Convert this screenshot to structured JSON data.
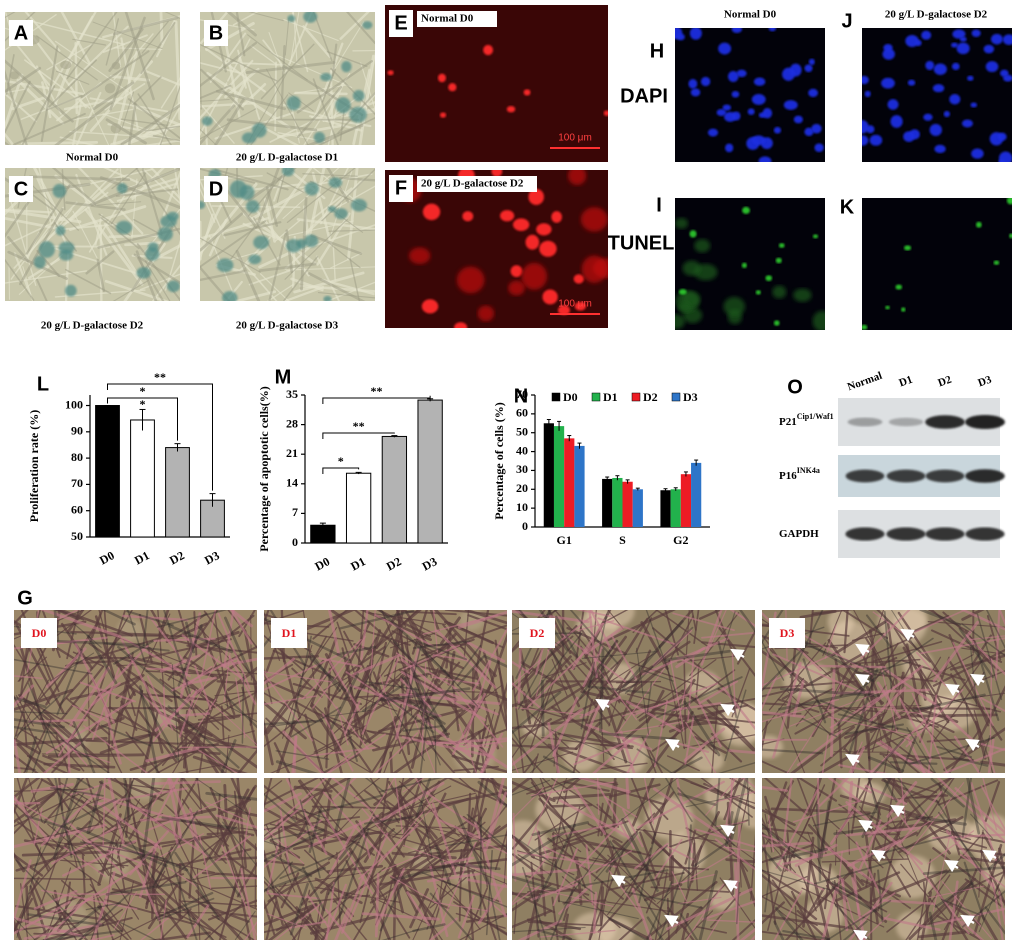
{
  "micrographs": [
    {
      "letter": "A",
      "caption": "Normal D0"
    },
    {
      "letter": "B",
      "caption": "20 g/L D-galactose D1"
    },
    {
      "letter": "C",
      "caption": "20 g/L D-galactose D2"
    },
    {
      "letter": "D",
      "caption": "20 g/L D-galactose D3"
    }
  ],
  "fluorescence": [
    {
      "letter": "E",
      "caption": "Normal D0",
      "scale": "100 μm"
    },
    {
      "letter": "F",
      "caption": "20 g/L D-galactose D2",
      "scale": "100 μm"
    }
  ],
  "tunel": {
    "columns": [
      "Normal D0",
      "20 g/L D-galactose D2"
    ],
    "rows": [
      "DAPI",
      "TUNEL"
    ],
    "letters": [
      "H",
      "J",
      "I",
      "K"
    ]
  },
  "blot": {
    "letter": "O",
    "lanes": [
      "Normal",
      "D1",
      "D2",
      "D3"
    ],
    "rows": [
      {
        "name": "P21",
        "sup": "Cip1/Waf1"
      },
      {
        "name": "P16",
        "sup": "INK4a"
      },
      {
        "name": "GAPDH"
      }
    ]
  },
  "morphology": {
    "letter": "G",
    "days": [
      "D0",
      "D1",
      "D2",
      "D3"
    ]
  },
  "chart_data": [
    {
      "type": "bar",
      "label": "L",
      "ylabel": "Proliferation rate (%)",
      "categories": [
        "D0",
        "D1",
        "D2",
        "D3"
      ],
      "values": [
        100,
        94.5,
        84,
        64
      ],
      "errors": [
        0,
        4,
        1.5,
        2.5
      ],
      "colors": [
        "#000000",
        "#ffffff",
        "#b3b3b3",
        "#b3b3b3"
      ],
      "ylim": [
        50,
        104
      ],
      "yticks": [
        50,
        60,
        70,
        80,
        90,
        100
      ],
      "significance": [
        "*",
        "*",
        "**"
      ]
    },
    {
      "type": "bar",
      "label": "M",
      "ylabel": "Percentage of apoptotic  cells(%)",
      "categories": [
        "D0",
        "D1",
        "D2",
        "D3"
      ],
      "values": [
        4.2,
        16.5,
        25.2,
        33.8
      ],
      "errors": [
        0.5,
        0.2,
        0.2,
        0.3
      ],
      "colors": [
        "#000000",
        "#ffffff",
        "#b3b3b3",
        "#b3b3b3"
      ],
      "ylim": [
        0,
        35
      ],
      "yticks": [
        0,
        7,
        14,
        21,
        28,
        35
      ],
      "significance": [
        "*",
        "**",
        "**"
      ]
    },
    {
      "type": "grouped_bar",
      "label": "N",
      "ylabel": "Percentage of cells (%)",
      "categories": [
        "G1",
        "S",
        "G2"
      ],
      "ylim": [
        0,
        70
      ],
      "yticks": [
        0,
        10,
        20,
        30,
        40,
        50,
        60,
        70
      ],
      "series": [
        {
          "name": "D0",
          "color": "#000000",
          "values": [
            55,
            25.5,
            19.5
          ],
          "errors": [
            2,
            1,
            0.8
          ]
        },
        {
          "name": "D1",
          "color": "#22b14c",
          "values": [
            53.5,
            26,
            20
          ],
          "errors": [
            2.5,
            1.2,
            0.8
          ]
        },
        {
          "name": "D2",
          "color": "#ed1c24",
          "values": [
            47,
            24,
            28
          ],
          "errors": [
            1.5,
            1,
            1.2
          ]
        },
        {
          "name": "D3",
          "color": "#2e75c8",
          "values": [
            43,
            20,
            34
          ],
          "errors": [
            1.5,
            0.6,
            1.5
          ]
        }
      ]
    }
  ]
}
